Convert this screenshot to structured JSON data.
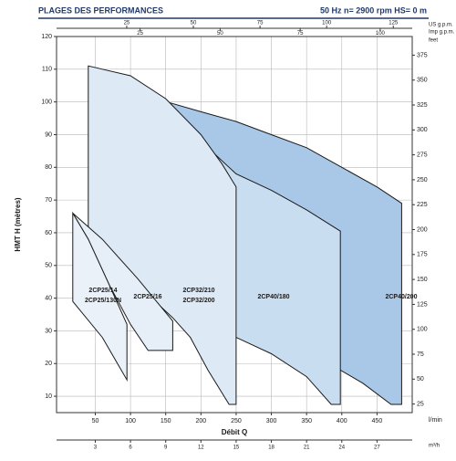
{
  "chart_data": {
    "type": "area",
    "title": "PLAGES DES PERFORMANCES",
    "subtitle": "50 Hz   n= 2900 rpm   HS= 0 m",
    "xlabel": "Débit Q",
    "ylabel": "HMT H (mètres)",
    "x_unit": "l/min",
    "x2_unit": "m³/h",
    "y2_unit": "feet",
    "x3_unit": "US g.p.m.",
    "x4_unit": "Imp g.p.m.",
    "xlim": [
      -5,
      500
    ],
    "xticks": [
      50,
      100,
      150,
      200,
      250,
      300,
      350,
      400,
      450
    ],
    "ylim": [
      5,
      120
    ],
    "yticks": [
      10,
      20,
      30,
      40,
      50,
      60,
      70,
      80,
      90,
      100,
      110,
      120
    ],
    "y2lim": [
      16.4,
      393.7
    ],
    "y2ticks": [
      25,
      50,
      75,
      100,
      125,
      150,
      175,
      200,
      225,
      250,
      275,
      300,
      325,
      350,
      375
    ],
    "x2lim": [
      -0.3,
      30
    ],
    "x2ticks": [
      3,
      6,
      9,
      12,
      15,
      18,
      21,
      24,
      27
    ],
    "x3lim": [
      -1.32,
      132.1
    ],
    "x3ticks": [
      25,
      50,
      75,
      100,
      125
    ],
    "x4lim": [
      -1.1,
      110
    ],
    "x4ticks": [
      25,
      50,
      75,
      100
    ],
    "grid": true,
    "series": [
      {
        "labels": [
          "2CP40/200"
        ],
        "color": "#a9c8e8",
        "x": [
          152,
          200,
          250,
          300,
          350,
          400,
          450,
          485,
          485,
          470,
          430,
          398
        ],
        "values": [
          100,
          97,
          94,
          90,
          86,
          80,
          74,
          69,
          7.5,
          7.5,
          14,
          18
        ]
      },
      {
        "labels": [
          "2CP40/180"
        ],
        "color": "#c9ddf1",
        "x": [
          152,
          200,
          250,
          300,
          350,
          398,
          398,
          385,
          350,
          300,
          250,
          200
        ],
        "values": [
          100,
          88,
          78,
          73,
          67,
          60.5,
          7.5,
          7.5,
          16,
          23,
          28,
          33
        ]
      },
      {
        "labels": [
          "2CP32/210",
          "2CP32/200"
        ],
        "color": "#dde9f5",
        "x": [
          40,
          100,
          150,
          200,
          230,
          250,
          250,
          240,
          210,
          185,
          160,
          40
        ],
        "values": [
          111,
          108,
          101,
          90,
          81,
          74,
          7.5,
          7.5,
          18,
          28,
          34,
          58
        ]
      },
      {
        "labels": [
          "2CP25/16"
        ],
        "color": "#e6eff8",
        "x": [
          18,
          60,
          110,
          160,
          160,
          125,
          100,
          70,
          40
        ],
        "values": [
          66,
          58,
          46,
          33,
          24,
          24,
          32,
          44,
          58
        ]
      },
      {
        "labels": [
          "2CP25/14",
          "2CP25/130N"
        ],
        "color": "#eaf1f9",
        "x": [
          18,
          40,
          70,
          95,
          95,
          60,
          18
        ],
        "values": [
          66,
          58,
          44,
          32,
          15,
          28,
          39
        ]
      }
    ]
  }
}
